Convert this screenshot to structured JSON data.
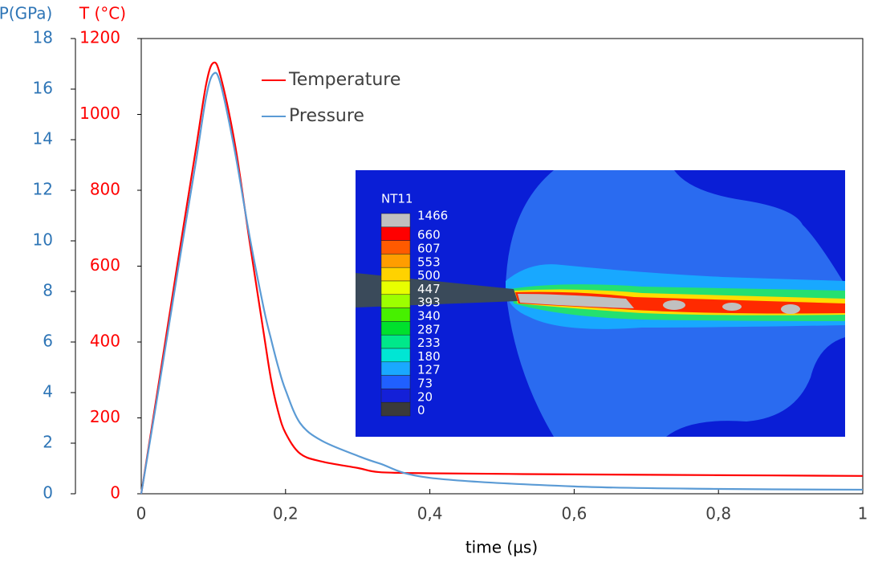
{
  "chart_data": {
    "type": "line",
    "x_label": "time (µs)",
    "y_label": "P(GPa)",
    "y2_label": "T (°C)",
    "x": [
      0,
      0.025,
      0.05,
      0.075,
      0.09,
      0.1,
      0.11,
      0.13,
      0.15,
      0.17,
      0.18,
      0.19,
      0.2,
      0.22,
      0.25,
      0.3,
      0.33,
      0.4,
      0.6,
      0.8,
      1
    ],
    "series": [
      {
        "name": "Temperature",
        "color": "#ff0000",
        "axis": "y2",
        "values": [
          0,
          300,
          603,
          900,
          1080,
          1136,
          1100,
          920,
          667,
          420,
          300,
          215,
          160,
          106,
          85,
          68,
          57,
          54,
          51,
          49,
          47
        ]
      },
      {
        "name": "Pressure",
        "color": "#5b9bd5",
        "values": [
          0,
          4.3,
          8.7,
          13.0,
          15.7,
          16.6,
          16.2,
          13.5,
          10.2,
          7.3,
          6.1,
          5.0,
          4.1,
          2.8,
          2.1,
          1.5,
          1.2,
          0.63,
          0.29,
          0.19,
          0.16
        ]
      }
    ],
    "xlim": [
      0,
      1
    ],
    "xticks": [
      0,
      {
        "value": 0.2,
        "label": "0,2"
      },
      {
        "value": 0.4,
        "label": "0,4"
      },
      {
        "value": 0.6,
        "label": "0,6"
      },
      {
        "value": 0.8,
        "label": "0,8"
      },
      1
    ],
    "ylim": [
      0,
      18
    ],
    "yticks": [
      0,
      2,
      4,
      6,
      8,
      10,
      12,
      14,
      16,
      18
    ],
    "y_color": "#2e75b6",
    "y2lim": [
      0,
      1200
    ],
    "y2ticks": [
      0,
      200,
      400,
      600,
      800,
      1000,
      1200
    ],
    "y2_color": "#ff0000",
    "inset": {
      "label": "NT11",
      "levels": [
        1466,
        660,
        607,
        553,
        500,
        447,
        393,
        340,
        287,
        233,
        180,
        127,
        73,
        20,
        0
      ],
      "colors": [
        "#c0c0c0",
        "#ff0000",
        "#ff5a00",
        "#ff9d00",
        "#ffd200",
        "#e8ff00",
        "#9dff00",
        "#47f000",
        "#00e02d",
        "#00e88a",
        "#00e6d4",
        "#1aa8ff",
        "#2060ff",
        "#1420d8",
        "#3a3a3a"
      ]
    }
  }
}
